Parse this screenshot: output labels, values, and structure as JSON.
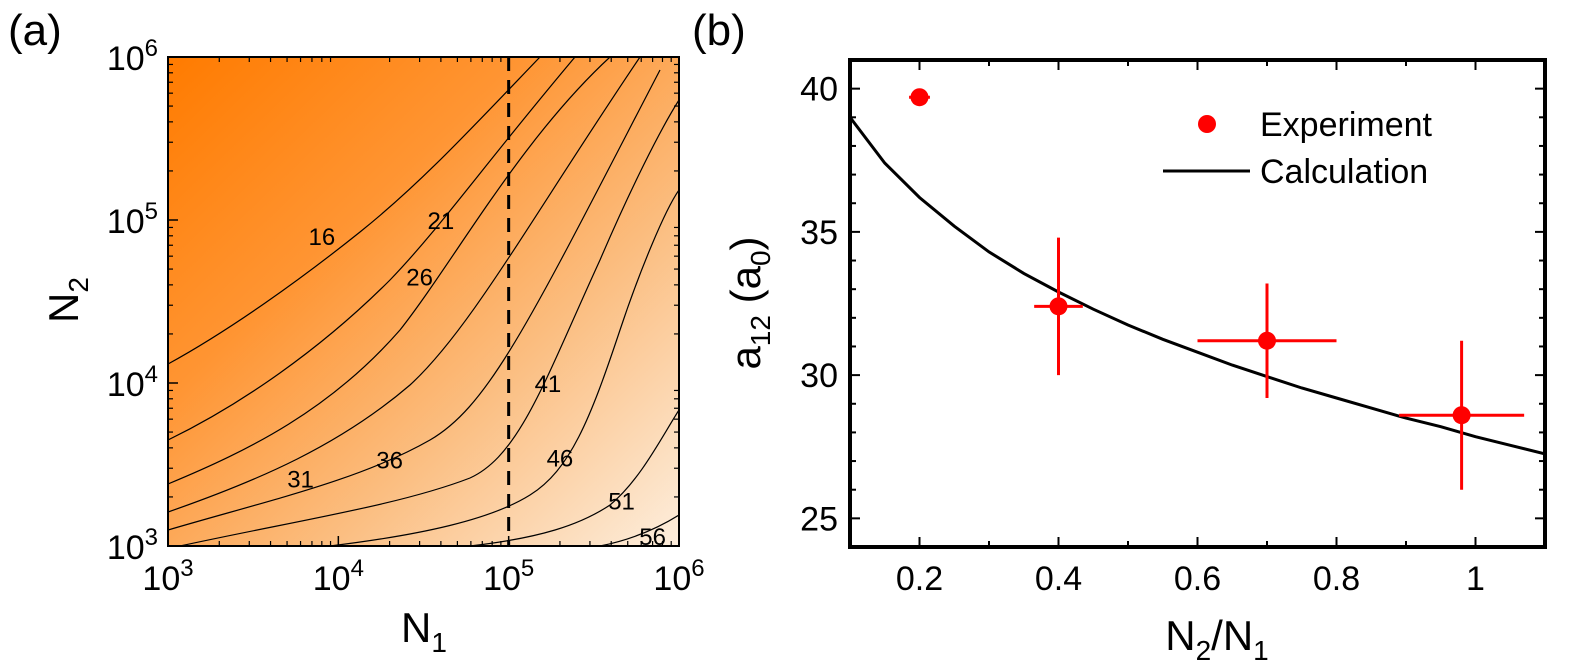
{
  "chart_data": [
    {
      "panel": "(a)",
      "type": "heatmap",
      "xlabel_main": "N",
      "xlabel_sub": "1",
      "ylabel_main": "N",
      "ylabel_sub": "2",
      "x_scale": "log",
      "y_scale": "log",
      "xlim": [
        1000,
        1000000
      ],
      "ylim": [
        1000,
        1000000
      ],
      "x_ticks": [
        {
          "base": "10",
          "exp": "3",
          "value": 1000
        },
        {
          "base": "10",
          "exp": "4",
          "value": 10000
        },
        {
          "base": "10",
          "exp": "5",
          "value": 100000
        },
        {
          "base": "10",
          "exp": "6",
          "value": 1000000
        }
      ],
      "y_ticks": [
        {
          "base": "10",
          "exp": "3",
          "value": 1000
        },
        {
          "base": "10",
          "exp": "4",
          "value": 10000
        },
        {
          "base": "10",
          "exp": "5",
          "value": 100000
        },
        {
          "base": "10",
          "exp": "6",
          "value": 1000000
        }
      ],
      "colors": {
        "low": "#fdeedd",
        "high": "#ff7b00"
      },
      "dashed_line_x": 100000,
      "contour_labels": [
        {
          "text": "16",
          "x": 8000,
          "y": 80000
        },
        {
          "text": "21",
          "x": 40000,
          "y": 100000
        },
        {
          "text": "26",
          "x": 30000,
          "y": 45000
        },
        {
          "text": "31",
          "x": 6000,
          "y": 2600
        },
        {
          "text": "36",
          "x": 20000,
          "y": 3400
        },
        {
          "text": "41",
          "x": 170000,
          "y": 10000
        },
        {
          "text": "46",
          "x": 200000,
          "y": 3500
        },
        {
          "text": "51",
          "x": 460000,
          "y": 1900
        },
        {
          "text": "56",
          "x": 700000,
          "y": 1150
        }
      ]
    },
    {
      "panel": "(b)",
      "type": "scatter",
      "xlabel_parts": [
        "N",
        "2",
        "/N",
        "1"
      ],
      "ylabel_parts": [
        "a",
        "12",
        " (a",
        "0",
        ")"
      ],
      "xlim": [
        0.1,
        1.1
      ],
      "ylim": [
        24,
        41
      ],
      "x_ticks": [
        "0.2",
        "0.4",
        "0.6",
        "0.8",
        "1"
      ],
      "x_tick_values": [
        0.2,
        0.4,
        0.6,
        0.8,
        1.0
      ],
      "y_ticks": [
        "25",
        "30",
        "35",
        "40"
      ],
      "y_tick_values": [
        25,
        30,
        35,
        40
      ],
      "colors": {
        "experiment": "#ff0000",
        "calculation": "#000000"
      },
      "series": [
        {
          "name": "Experiment",
          "kind": "points",
          "x": [
            0.2,
            0.4,
            0.7,
            0.98
          ],
          "y": [
            39.7,
            32.4,
            31.2,
            28.6
          ],
          "x_err": [
            0.015,
            0.035,
            0.1,
            0.09
          ],
          "y_err": [
            0.1,
            2.4,
            2.0,
            2.6
          ]
        },
        {
          "name": "Calculation",
          "kind": "line",
          "x": [
            0.1,
            0.15,
            0.2,
            0.25,
            0.3,
            0.35,
            0.4,
            0.45,
            0.5,
            0.55,
            0.6,
            0.65,
            0.7,
            0.75,
            0.8,
            0.85,
            0.9,
            0.95,
            1.0,
            1.05,
            1.1
          ],
          "y": [
            39.0,
            37.4,
            36.2,
            35.2,
            34.3,
            33.55,
            32.9,
            32.3,
            31.75,
            31.25,
            30.8,
            30.35,
            29.95,
            29.55,
            29.2,
            28.85,
            28.5,
            28.2,
            27.85,
            27.55,
            27.25
          ]
        }
      ],
      "legend": {
        "placement": "top-right",
        "experiment_label": "Experiment",
        "calculation_label": "Calculation"
      }
    }
  ]
}
